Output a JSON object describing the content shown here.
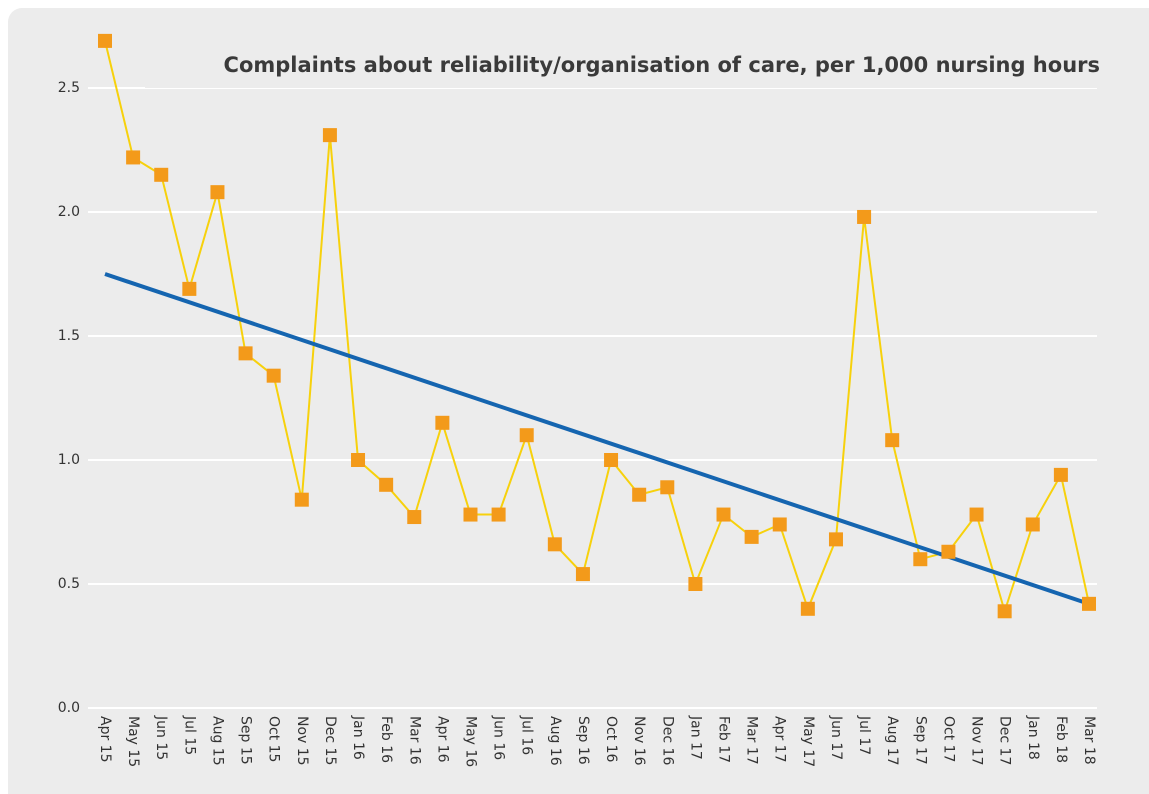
{
  "chart_data": {
    "type": "line",
    "title": "Complaints about reliability/organisation of care, per 1,000 nursing hours",
    "categories": [
      "Apr 15",
      "May 15",
      "Jun 15",
      "Jul 15",
      "Aug 15",
      "Sep 15",
      "Oct 15",
      "Nov 15",
      "Dec 15",
      "Jan 16",
      "Feb 16",
      "Mar 16",
      "Apr 16",
      "May 16",
      "Jun 16",
      "Jul 16",
      "Aug 16",
      "Sep 16",
      "Oct 16",
      "Nov 16",
      "Dec 16",
      "Jan 17",
      "Feb 17",
      "Mar 17",
      "Apr 17",
      "May 17",
      "Jun 17",
      "Jul 17",
      "Aug 17",
      "Sep 17",
      "Oct 17",
      "Nov 17",
      "Dec 17",
      "Jan 18",
      "Feb 18",
      "Mar 18"
    ],
    "values": [
      2.69,
      2.22,
      2.15,
      1.69,
      2.08,
      1.43,
      1.34,
      0.84,
      2.31,
      1.0,
      0.9,
      0.77,
      1.15,
      0.78,
      0.78,
      1.1,
      0.66,
      0.54,
      1.0,
      0.86,
      0.89,
      0.5,
      0.78,
      0.69,
      0.74,
      0.4,
      0.68,
      1.98,
      1.08,
      0.6,
      0.63,
      0.78,
      0.39,
      0.74,
      0.94,
      0.42
    ],
    "line_color": "#f7d10c",
    "marker_color": "#f39a1a",
    "trend": {
      "values": [
        1.75,
        0.42
      ],
      "color": "#1565b0"
    },
    "ylim": [
      0,
      2.75
    ],
    "yticks": [
      {
        "value": 0,
        "label": "0.0"
      },
      0.5,
      {
        "value": 1,
        "label": "1.0"
      },
      1.5,
      {
        "value": 2,
        "label": "2.0"
      },
      2.5
    ],
    "grid": true
  }
}
